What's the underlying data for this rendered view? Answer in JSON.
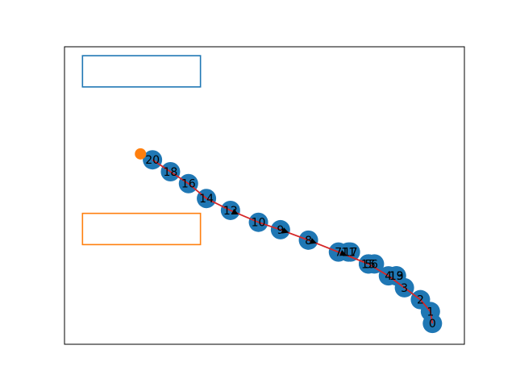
{
  "colors": {
    "node": "#1f77b4",
    "marker": "#ff7f0e",
    "path": "#d62728",
    "arrow": "#000000",
    "box_upper": "#1f77b4",
    "box_lower": "#ff7f0e",
    "frame": "#000000"
  },
  "chart_data": {
    "type": "scatter",
    "title": "",
    "xlabel": "",
    "ylabel": "",
    "grid": false,
    "ticks": "hidden",
    "xlim": [
      0,
      10
    ],
    "ylim": [
      0,
      10
    ],
    "points": [
      {
        "label": "0",
        "x": 9.2,
        "y": 0.7
      },
      {
        "label": "1",
        "x": 9.15,
        "y": 1.1
      },
      {
        "label": "2",
        "x": 8.9,
        "y": 1.5
      },
      {
        "label": "3",
        "x": 8.5,
        "y": 1.9
      },
      {
        "label": "4",
        "x": 8.1,
        "y": 2.3
      },
      {
        "label": "5",
        "x": 7.6,
        "y": 2.7
      },
      {
        "label": "6",
        "x": 7.75,
        "y": 2.7
      },
      {
        "label": "7",
        "x": 6.85,
        "y": 3.1
      },
      {
        "label": "8",
        "x": 6.1,
        "y": 3.5
      },
      {
        "label": "9",
        "x": 5.4,
        "y": 3.85
      },
      {
        "label": "10",
        "x": 4.85,
        "y": 4.1
      },
      {
        "label": "11",
        "x": 7.1,
        "y": 3.1
      },
      {
        "label": "12",
        "x": 4.15,
        "y": 4.5
      },
      {
        "label": "13",
        "x": 8.3,
        "y": 2.3
      },
      {
        "label": "14",
        "x": 3.55,
        "y": 4.9
      },
      {
        "label": "15",
        "x": 7.6,
        "y": 2.7
      },
      {
        "label": "16",
        "x": 3.1,
        "y": 5.4
      },
      {
        "label": "17",
        "x": 7.15,
        "y": 3.1
      },
      {
        "label": "18",
        "x": 2.65,
        "y": 5.8
      },
      {
        "label": "19",
        "x": 8.3,
        "y": 2.3
      },
      {
        "label": "20",
        "x": 2.2,
        "y": 6.2
      }
    ],
    "path_order": [
      "0",
      "1",
      "2",
      "3",
      "4",
      "5",
      "7",
      "8",
      "9",
      "10",
      "12",
      "14",
      "16",
      "18",
      "20"
    ],
    "arrows": [
      {
        "from": "8",
        "to": "7"
      },
      {
        "from": "9",
        "to": "8"
      },
      {
        "from": "10",
        "to": "9"
      },
      {
        "from": "14",
        "to": "12"
      }
    ],
    "extra_marker": {
      "x": 1.9,
      "y": 6.4
    },
    "boxes": [
      {
        "id": "upper",
        "x0": 0.45,
        "y0": 8.65,
        "x1": 3.4,
        "y1": 9.7
      },
      {
        "id": "lower",
        "x0": 0.45,
        "y0": 3.35,
        "x1": 3.4,
        "y1": 4.4
      }
    ]
  }
}
